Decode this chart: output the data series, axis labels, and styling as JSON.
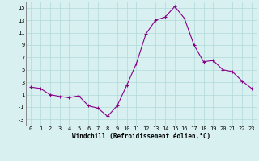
{
  "x": [
    0,
    1,
    2,
    3,
    4,
    5,
    6,
    7,
    8,
    9,
    10,
    11,
    12,
    13,
    14,
    15,
    16,
    17,
    18,
    19,
    20,
    21,
    22,
    23
  ],
  "y": [
    2.2,
    2.0,
    1.0,
    0.7,
    0.5,
    0.8,
    -0.8,
    -1.2,
    -2.5,
    -0.8,
    2.5,
    6.0,
    10.8,
    13.0,
    13.5,
    15.2,
    13.3,
    9.0,
    6.3,
    6.5,
    5.0,
    4.7,
    3.2,
    2.0
  ],
  "line_color": "#880088",
  "marker": "+",
  "marker_size": 3,
  "xlabel": "Windchill (Refroidissement éolien,°C)",
  "ylabel": "",
  "xlim": [
    -0.5,
    23.5
  ],
  "ylim": [
    -4,
    16
  ],
  "yticks": [
    -3,
    -1,
    1,
    3,
    5,
    7,
    9,
    11,
    13,
    15
  ],
  "xticks": [
    0,
    1,
    2,
    3,
    4,
    5,
    6,
    7,
    8,
    9,
    10,
    11,
    12,
    13,
    14,
    15,
    16,
    17,
    18,
    19,
    20,
    21,
    22,
    23
  ],
  "bg_color": "#d8f0f0",
  "grid_color": "#b0d8d8",
  "xlabel_fontsize": 5.5,
  "tick_fontsize": 5.0
}
